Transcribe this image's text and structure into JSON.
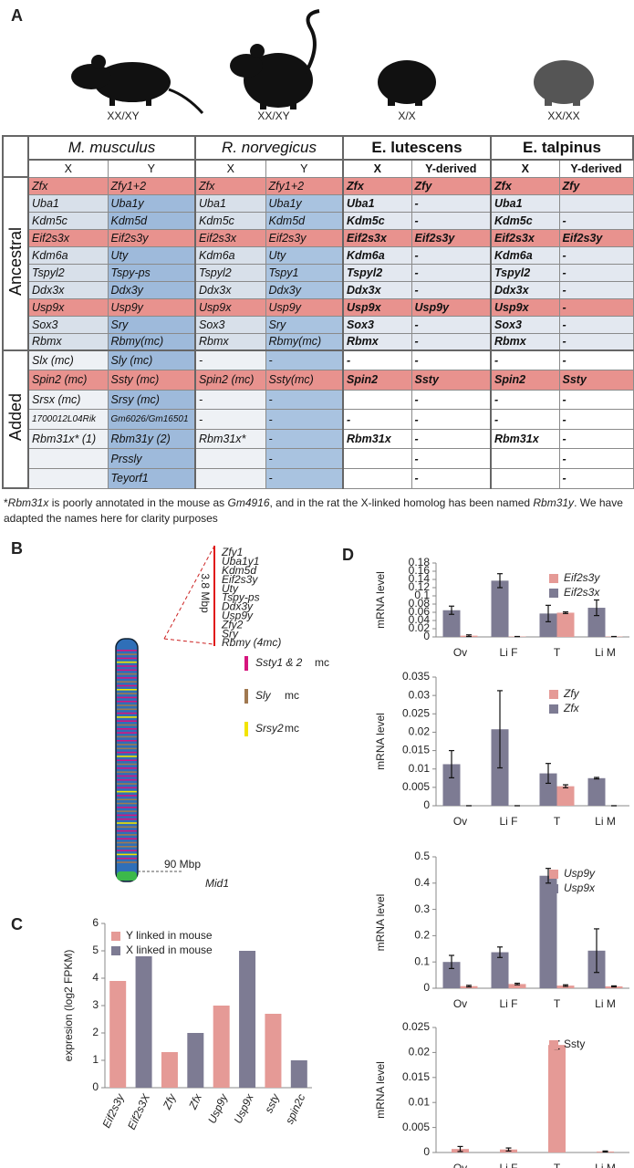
{
  "panel_a": {
    "label": "A",
    "animals": [
      "XX/XY",
      "XX/XY",
      "X/X",
      "XX/XX"
    ],
    "table": {
      "species": [
        "M. musculus",
        "R. norvegicus",
        "E. lutescens",
        "E. talpinus"
      ],
      "subheaders": [
        [
          "X",
          "Y"
        ],
        [
          "X",
          "Y"
        ],
        [
          "X",
          "Y-derived"
        ],
        [
          "X",
          "Y-derived"
        ]
      ],
      "groups": [
        {
          "label": "Ancestral",
          "rows": [
            {
              "cells": [
                "Zfx",
                "Zfy1+2",
                "Zfx",
                "Zfy1+2",
                "Zfx",
                "Zfy",
                "Zfx",
                "Zfy"
              ],
              "highlight": true
            },
            {
              "cells": [
                "Uba1",
                "Uba1y",
                "Uba1",
                "Uba1y",
                "Uba1",
                "-",
                "Uba1",
                null
              ]
            },
            {
              "cells": [
                "Kdm5c",
                "Kdm5d",
                "Kdm5c",
                "Kdm5d",
                "Kdm5c",
                "-",
                "Kdm5c",
                "-"
              ]
            },
            {
              "cells": [
                "Eif2s3x",
                "Eif2s3y",
                "Eif2s3x",
                "Eif2s3y",
                "Eif2s3x",
                "Eif2s3y",
                "Eif2s3x",
                "Eif2s3y"
              ],
              "highlight": true
            },
            {
              "cells": [
                "Kdm6a",
                "Uty",
                "Kdm6a",
                "Uty",
                "Kdm6a",
                "-",
                "Kdm6a",
                "-"
              ]
            },
            {
              "cells": [
                "Tspyl2",
                "Tspy-ps",
                "Tspyl2",
                "Tspy1",
                "Tspyl2",
                "-",
                "Tspyl2",
                "-"
              ]
            },
            {
              "cells": [
                "Ddx3x",
                "Ddx3y",
                "Ddx3x",
                "Ddx3y",
                "Ddx3x",
                "-",
                "Ddx3x",
                "-"
              ]
            },
            {
              "cells": [
                "Usp9x",
                "Usp9y",
                "Usp9x",
                "Usp9y",
                "Usp9x",
                "Usp9y",
                "Usp9x",
                "-"
              ],
              "highlight": true
            },
            {
              "cells": [
                "Sox3",
                "Sry",
                "Sox3",
                "Sry",
                "Sox3",
                "-",
                "Sox3",
                "-"
              ]
            },
            {
              "cells": [
                "Rbmx",
                "Rbmy(mc)",
                "Rbmx",
                "Rbmy(mc)",
                "Rbmx",
                "-",
                "Rbmx",
                "-"
              ]
            }
          ]
        },
        {
          "label": "Added",
          "rows": [
            {
              "cells": [
                "Slx (mc)",
                "Sly (mc)",
                "-",
                "-",
                "-",
                "-",
                "-",
                "-"
              ]
            },
            {
              "cells": [
                "Spin2 (mc)",
                "Ssty (mc)",
                "Spin2 (mc)",
                "Ssty(mc)",
                "Spin2",
                "Ssty",
                "Spin2",
                "Ssty"
              ],
              "highlight": true
            },
            {
              "cells": [
                "Srsx (mc)",
                "Srsy (mc)",
                "-",
                "-",
                null,
                "-",
                "-",
                "-"
              ]
            },
            {
              "cells": [
                "1700012L04Rik",
                "Gm6026/Gm16501",
                "-",
                "-",
                "-",
                "-",
                "-",
                "-"
              ]
            },
            {
              "cells": [
                "Rbm31x* (1)",
                "Rbm31y (2)",
                "Rbm31x*",
                "-",
                "Rbm31x",
                "-",
                "Rbm31x",
                "-"
              ]
            },
            {
              "cells": [
                null,
                "Prssly",
                null,
                "-",
                null,
                "-",
                null,
                "-"
              ]
            },
            {
              "cells": [
                null,
                "Teyorf1",
                null,
                "-",
                null,
                "-",
                null,
                "-"
              ]
            }
          ]
        }
      ]
    },
    "footnote": [
      "*",
      "Rbm31x",
      " is poorly annotated in the mouse as ",
      "Gm4916",
      ", and in the rat the X-linked homolog has been named ",
      "Rbm31y",
      ". We have adapted the names here for clarity purposes"
    ]
  },
  "panel_b": {
    "label": "B",
    "genes": [
      {
        "name": "Zfy1",
        "color": "#d6157e"
      },
      {
        "name": "Uba1y1",
        "color": "#222222"
      },
      {
        "name": "Kdm5d",
        "color": "#222222"
      },
      {
        "name": "Eif2s3y",
        "color": "#d6157e"
      },
      {
        "name": "Uty",
        "color": "#222222"
      },
      {
        "name": "Tspy-ps",
        "color": "#222222"
      },
      {
        "name": "Ddx3y",
        "color": "#222222"
      },
      {
        "name": "Usp9y",
        "color": "#d6157e"
      },
      {
        "name": "Zfy2",
        "color": "#d6157e"
      },
      {
        "name": "Sry",
        "color": "#222222"
      },
      {
        "name": "Rbmy (4mc)",
        "color": "#222222"
      }
    ],
    "span": "3.8 Mbp",
    "legend": [
      {
        "name": "Ssty1 & 2",
        "note": "mc",
        "color": "#d6157e"
      },
      {
        "name": "Sly",
        "note": "mc",
        "color": "#a07850"
      },
      {
        "name": "Srsy2",
        "note": "mc",
        "color": "#f2e400"
      }
    ],
    "position": "90 Mbp",
    "marker": "Mid1"
  },
  "chart_data": [
    {
      "type": "bar",
      "label": "C",
      "ylabel": "expresion (log2 FPKM)",
      "categories": [
        "Eif2s3y",
        "Eif2s3X",
        "Zfy",
        "Zfx",
        "Usp9y",
        "Usp9x",
        "ssty",
        "spin2c"
      ],
      "series": [
        {
          "name": "Y linked in mouse",
          "color": "#e59a96",
          "values": [
            3.9,
            null,
            1.3,
            null,
            3.0,
            null,
            2.7,
            null
          ]
        },
        {
          "name": "X linked in mouse",
          "color": "#7d7b93",
          "values": [
            null,
            4.8,
            null,
            2.0,
            null,
            5.0,
            null,
            1.0
          ]
        }
      ],
      "ylim": [
        0,
        6
      ],
      "yticks": [
        0,
        1,
        2,
        3,
        4,
        5,
        6
      ],
      "legend": "top-left"
    },
    {
      "type": "bar",
      "label": "D",
      "ylabel": "mRNA level",
      "categories": [
        "Ov",
        "Li F",
        "T",
        "Li M"
      ],
      "series": [
        {
          "name": "Eif2s3y",
          "color": "#e59a96",
          "values": [
            0.003,
            0.001,
            0.059,
            0.001
          ],
          "errors": [
            0.002,
            0,
            0.002,
            0
          ]
        },
        {
          "name": "Eif2s3x",
          "color": "#7d7b93",
          "values": [
            0.065,
            0.137,
            0.057,
            0.071
          ],
          "errors": [
            0.01,
            0.017,
            0.02,
            0.019
          ]
        }
      ],
      "ylim": [
        0,
        0.18
      ],
      "yticks": [
        0,
        0.02,
        0.04,
        0.06,
        0.08,
        0.1,
        0.12,
        0.14,
        0.16,
        0.18
      ],
      "legend": "top-right"
    },
    {
      "type": "bar",
      "ylabel": "mRNA level",
      "categories": [
        "Ov",
        "Li F",
        "T",
        "Li M"
      ],
      "series": [
        {
          "name": "Zfy",
          "color": "#e59a96",
          "values": [
            0,
            0,
            0.0053,
            0
          ],
          "errors": [
            0,
            0,
            0.0004,
            0
          ]
        },
        {
          "name": "Zfx",
          "color": "#7d7b93",
          "values": [
            0.0113,
            0.0208,
            0.0088,
            0.0075
          ],
          "errors": [
            0.0037,
            0.0105,
            0.0027,
            0.0002
          ]
        }
      ],
      "ylim": [
        0,
        0.035
      ],
      "yticks": [
        0,
        0.005,
        0.01,
        0.015,
        0.02,
        0.025,
        0.03,
        0.035
      ],
      "legend": "top-right"
    },
    {
      "type": "bar",
      "ylabel": "mRNA level",
      "categories": [
        "Ov",
        "Li F",
        "T",
        "Li M"
      ],
      "series": [
        {
          "name": "Usp9y",
          "color": "#e59a96",
          "values": [
            0.008,
            0.016,
            0.01,
            0.007
          ],
          "errors": [
            0.003,
            0.003,
            0.003,
            0.002
          ]
        },
        {
          "name": "Usp9x",
          "color": "#7d7b93",
          "values": [
            0.1,
            0.137,
            0.428,
            0.143
          ],
          "errors": [
            0.025,
            0.02,
            0.028,
            0.083
          ]
        }
      ],
      "ylim": [
        0,
        0.5
      ],
      "yticks": [
        0,
        0.1,
        0.2,
        0.3,
        0.4,
        0.5
      ],
      "legend": "top-right"
    },
    {
      "type": "bar",
      "ylabel": "mRNA level",
      "categories": [
        "Ov",
        "Li F",
        "T",
        "Li M"
      ],
      "series": [
        {
          "name": "Ssty",
          "color": "#e59a96",
          "values": [
            0.0007,
            0.0006,
            0.0215,
            0.0002
          ],
          "errors": [
            0.0005,
            0.0003,
            0.0008,
            0.0001
          ]
        }
      ],
      "ylim": [
        0,
        0.025
      ],
      "yticks": [
        0,
        0.005,
        0.01,
        0.015,
        0.02,
        0.025
      ],
      "legend": "top-right"
    }
  ]
}
